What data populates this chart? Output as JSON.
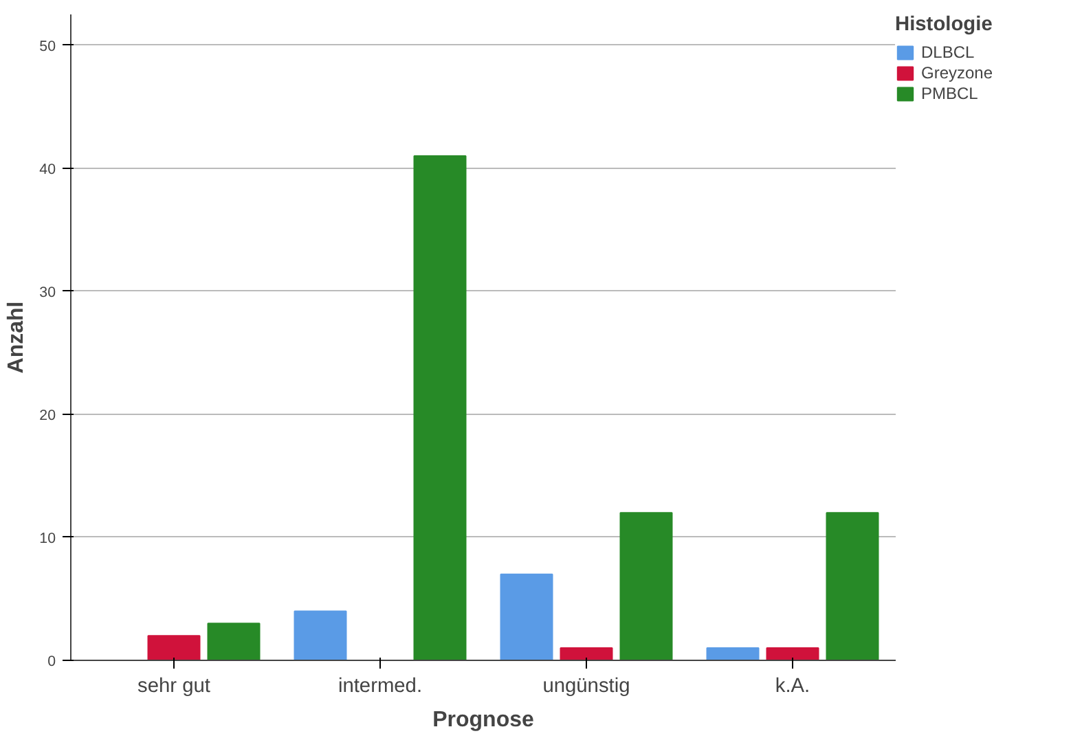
{
  "chart_data": {
    "type": "bar",
    "xlabel": "Prognose",
    "ylabel": "Anzahl",
    "legend_title": "Histologie",
    "categories": [
      "sehr gut",
      "intermed.",
      "ungünstig",
      "k.A."
    ],
    "series": [
      {
        "name": "DLBCL",
        "color": "#5a9be6",
        "values": [
          0,
          4,
          7,
          1
        ]
      },
      {
        "name": "Greyzone",
        "color": "#d0123b",
        "values": [
          2,
          0,
          1,
          1
        ]
      },
      {
        "name": "PMBCL",
        "color": "#278a27",
        "values": [
          3,
          41,
          12,
          12
        ]
      }
    ],
    "ylim": [
      0,
      52.5
    ],
    "yticks": [
      0,
      10,
      20,
      30,
      40,
      50
    ],
    "grid": "y",
    "legend": "top right"
  }
}
